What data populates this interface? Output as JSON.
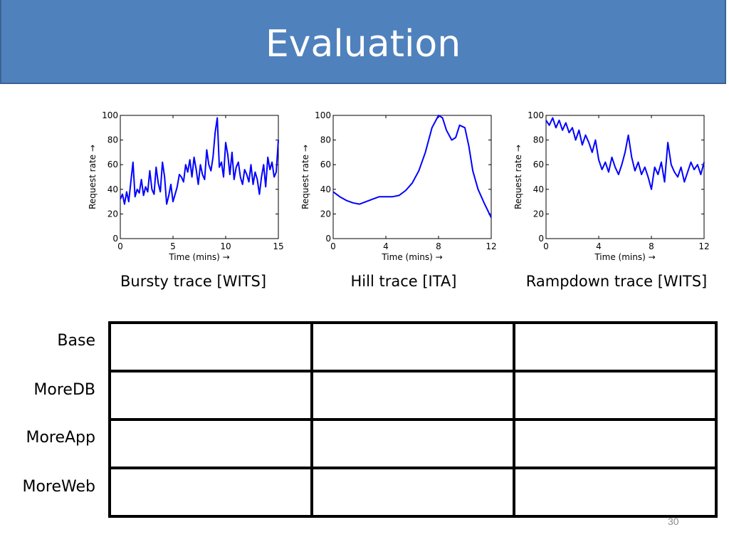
{
  "slide": {
    "title": "Evaluation",
    "page_number": "30"
  },
  "chart_data": [
    {
      "type": "line",
      "xlabel": "Time (mins) →",
      "ylabel": "Request rate →",
      "xlim": [
        0,
        15
      ],
      "ylim": [
        0,
        100
      ],
      "xticks": [
        0,
        5,
        10,
        15
      ],
      "yticks": [
        0,
        20,
        40,
        60,
        80,
        100
      ],
      "caption": "Bursty trace [WITS]",
      "color": "#0000ff",
      "series": [
        {
          "x": [
            0,
            0.2,
            0.4,
            0.6,
            0.8,
            1.0,
            1.2,
            1.4,
            1.6,
            1.8,
            2.0,
            2.2,
            2.4,
            2.6,
            2.8,
            3.0,
            3.2,
            3.4,
            3.6,
            3.8,
            4.0,
            4.2,
            4.4,
            4.6,
            4.8,
            5.0,
            5.2,
            5.4,
            5.6,
            5.8,
            6.0,
            6.2,
            6.4,
            6.6,
            6.8,
            7.0,
            7.2,
            7.4,
            7.6,
            7.8,
            8.0,
            8.2,
            8.4,
            8.6,
            8.8,
            9.0,
            9.2,
            9.4,
            9.6,
            9.8,
            10.0,
            10.2,
            10.4,
            10.6,
            10.8,
            11.0,
            11.2,
            11.4,
            11.6,
            11.8,
            12.0,
            12.2,
            12.4,
            12.6,
            12.8,
            13.0,
            13.2,
            13.4,
            13.6,
            13.8,
            14.0,
            14.2,
            14.4,
            14.6,
            14.8,
            15.0
          ],
          "y": [
            32,
            36,
            28,
            38,
            30,
            46,
            62,
            34,
            40,
            37,
            48,
            35,
            42,
            38,
            55,
            40,
            36,
            58,
            45,
            38,
            62,
            50,
            28,
            35,
            44,
            30,
            36,
            42,
            52,
            50,
            46,
            60,
            54,
            64,
            50,
            66,
            56,
            44,
            60,
            52,
            48,
            72,
            60,
            55,
            66,
            86,
            98,
            58,
            62,
            50,
            78,
            68,
            52,
            70,
            48,
            58,
            62,
            50,
            44,
            56,
            52,
            46,
            60,
            44,
            54,
            48,
            36,
            50,
            60,
            42,
            66,
            56,
            62,
            50,
            54,
            80
          ]
        }
      ]
    },
    {
      "type": "line",
      "xlabel": "Time (mins) →",
      "ylabel": "Request rate →",
      "xlim": [
        0,
        12
      ],
      "ylim": [
        0,
        100
      ],
      "xticks": [
        0,
        4,
        8,
        12
      ],
      "yticks": [
        0,
        20,
        40,
        60,
        80,
        100
      ],
      "caption": "Hill trace [ITA]",
      "color": "#0000ff",
      "series": [
        {
          "x": [
            0,
            0.5,
            1.0,
            1.5,
            2.0,
            2.5,
            3.0,
            3.5,
            4.0,
            4.5,
            5.0,
            5.5,
            6.0,
            6.5,
            7.0,
            7.5,
            8.0,
            8.3,
            8.6,
            9.0,
            9.3,
            9.6,
            10.0,
            10.3,
            10.6,
            11.0,
            11.5,
            12.0
          ],
          "y": [
            38,
            34,
            31,
            29,
            28,
            30,
            32,
            34,
            34,
            34,
            35,
            39,
            45,
            55,
            70,
            90,
            100,
            98,
            88,
            80,
            82,
            92,
            90,
            75,
            55,
            40,
            28,
            17
          ]
        }
      ]
    },
    {
      "type": "line",
      "xlabel": "Time (mins) →",
      "ylabel": "Request rate →",
      "xlim": [
        0,
        12
      ],
      "ylim": [
        0,
        100
      ],
      "xticks": [
        0,
        4,
        8,
        12
      ],
      "yticks": [
        0,
        20,
        40,
        60,
        80,
        100
      ],
      "caption": "Rampdown trace [WITS]",
      "color": "#0000ff",
      "series": [
        {
          "x": [
            0,
            0.25,
            0.5,
            0.75,
            1.0,
            1.25,
            1.5,
            1.75,
            2.0,
            2.25,
            2.5,
            2.75,
            3.0,
            3.25,
            3.5,
            3.75,
            4.0,
            4.25,
            4.5,
            4.75,
            5.0,
            5.25,
            5.5,
            5.75,
            6.0,
            6.25,
            6.5,
            6.75,
            7.0,
            7.25,
            7.5,
            7.75,
            8.0,
            8.25,
            8.5,
            8.75,
            9.0,
            9.25,
            9.5,
            9.75,
            10.0,
            10.25,
            10.5,
            10.75,
            11.0,
            11.25,
            11.5,
            11.75,
            12.0
          ],
          "y": [
            96,
            92,
            98,
            90,
            96,
            88,
            94,
            86,
            90,
            80,
            88,
            76,
            84,
            78,
            70,
            80,
            64,
            56,
            62,
            54,
            66,
            58,
            52,
            60,
            70,
            84,
            66,
            55,
            62,
            52,
            58,
            50,
            40,
            58,
            52,
            62,
            46,
            78,
            60,
            54,
            50,
            58,
            46,
            54,
            62,
            56,
            60,
            52,
            62
          ]
        }
      ]
    }
  ],
  "table": {
    "rows": [
      "Base",
      "MoreDB",
      "MoreApp",
      "MoreWeb"
    ]
  }
}
